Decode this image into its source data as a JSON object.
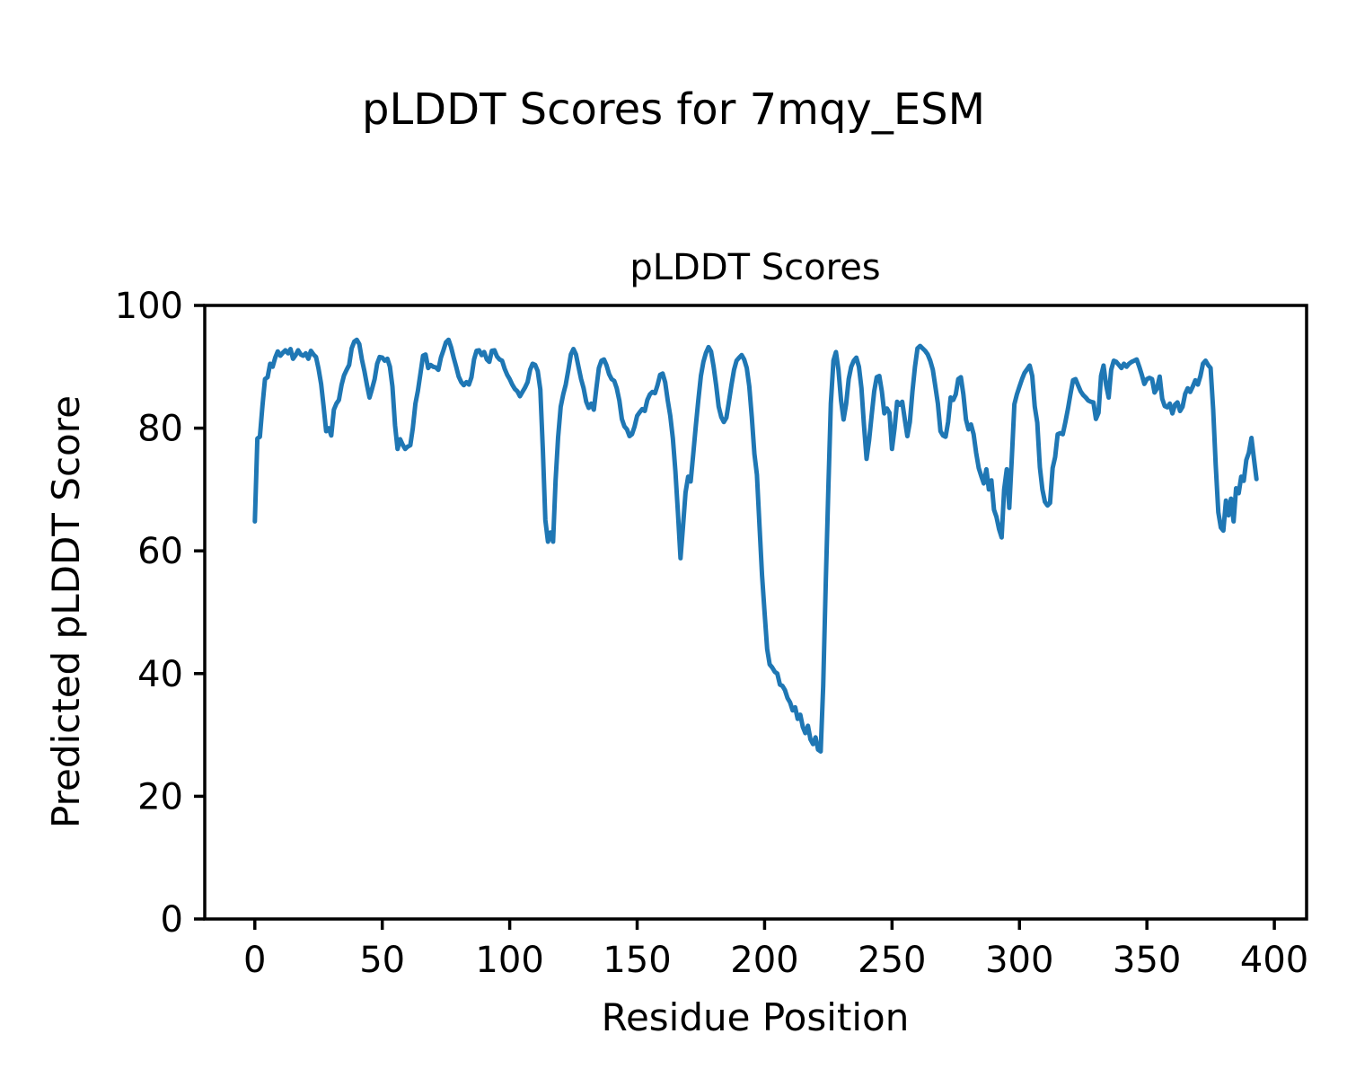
{
  "figure": {
    "suptitle": "pLDDT Scores for 7mqy_ESM",
    "axes_title": "pLDDT Scores",
    "xlabel": "Residue Position",
    "ylabel": "Predicted pLDDT Score",
    "background": "#ffffff",
    "line_color": "#1f77b4",
    "spine_color": "#000000"
  },
  "chart_data": {
    "type": "line",
    "title": "pLDDT Scores",
    "suptitle": "pLDDT Scores for 7mqy_ESM",
    "xlabel": "Residue Position",
    "ylabel": "Predicted pLDDT Score",
    "series_name": "pLDDT",
    "grid": false,
    "legend": null,
    "xlim": [
      -19.65,
      412.65
    ],
    "ylim": [
      0,
      100
    ],
    "xticks": [
      0,
      50,
      100,
      150,
      200,
      250,
      300,
      350,
      400
    ],
    "yticks": [
      0,
      20,
      40,
      60,
      80,
      100
    ],
    "x_range": [
      0,
      393
    ],
    "x_step": 1,
    "y": [
      64.8,
      78.3,
      78.6,
      83.7,
      88.0,
      88.3,
      90.5,
      90.0,
      91.5,
      92.5,
      91.8,
      92.3,
      92.7,
      92.2,
      92.9,
      91.3,
      91.9,
      92.7,
      92.0,
      91.8,
      92.2,
      91.3,
      92.6,
      92.0,
      91.6,
      89.7,
      87.2,
      83.5,
      79.5,
      80.0,
      78.8,
      83.0,
      84.0,
      84.6,
      87.0,
      88.6,
      89.5,
      90.3,
      93.0,
      94.1,
      94.4,
      93.7,
      91.2,
      89.3,
      87.0,
      85.0,
      86.4,
      88.0,
      90.5,
      91.6,
      91.5,
      91.0,
      91.3,
      90.0,
      86.8,
      80.5,
      76.6,
      78.2,
      77.3,
      76.6,
      77.0,
      77.2,
      80.0,
      84.0,
      86.1,
      89.0,
      91.8,
      92.0,
      89.8,
      90.3,
      90.0,
      89.9,
      89.5,
      91.5,
      92.7,
      94.0,
      94.4,
      93.2,
      91.5,
      90.0,
      88.4,
      87.5,
      87.0,
      87.5,
      87.1,
      88.3,
      91.2,
      92.6,
      92.7,
      91.9,
      92.4,
      91.2,
      90.8,
      92.6,
      92.7,
      91.7,
      91.2,
      91.0,
      89.7,
      88.7,
      88.0,
      87.1,
      86.4,
      86.0,
      85.2,
      85.9,
      86.6,
      87.5,
      89.5,
      90.5,
      90.3,
      89.3,
      86.3,
      76.5,
      65.0,
      61.5,
      63.0,
      61.5,
      71.5,
      78.5,
      83.5,
      85.5,
      87.1,
      89.5,
      92.0,
      92.9,
      92.0,
      90.0,
      88.0,
      86.5,
      84.3,
      83.3,
      84.0,
      83.0,
      86.5,
      89.8,
      91.0,
      91.2,
      90.2,
      88.8,
      88.0,
      87.7,
      86.5,
      84.5,
      81.5,
      80.3,
      79.8,
      78.7,
      79.0,
      80.3,
      82.0,
      82.6,
      83.1,
      82.8,
      84.6,
      85.5,
      85.9,
      85.7,
      87.0,
      88.7,
      88.9,
      87.5,
      84.5,
      82.0,
      78.3,
      73.0,
      66.3,
      58.8,
      64.0,
      69.5,
      72.1,
      71.3,
      75.8,
      80.3,
      84.5,
      88.5,
      90.8,
      92.3,
      93.2,
      92.5,
      90.0,
      87.0,
      83.5,
      81.8,
      81.0,
      81.7,
      84.3,
      87.0,
      89.5,
      91.0,
      91.5,
      91.9,
      91.2,
      89.8,
      86.8,
      81.8,
      75.8,
      72.4,
      64.0,
      56.0,
      50.0,
      44.0,
      41.5,
      41.0,
      40.3,
      40.0,
      38.2,
      38.0,
      37.3,
      36.0,
      35.3,
      34.0,
      34.5,
      32.6,
      33.3,
      31.3,
      30.3,
      31.5,
      29.3,
      28.5,
      29.6,
      27.6,
      27.3,
      38.0,
      55.0,
      70.0,
      84.0,
      91.0,
      92.4,
      89.5,
      84.5,
      81.4,
      84.0,
      88.0,
      90.0,
      91.0,
      91.5,
      90.0,
      86.5,
      80.5,
      75.0,
      78.0,
      82.0,
      86.0,
      88.3,
      88.5,
      86.0,
      82.4,
      83.2,
      82.5,
      76.6,
      80.0,
      84.3,
      83.8,
      84.3,
      81.5,
      78.7,
      81.0,
      86.0,
      90.0,
      93.0,
      93.4,
      93.0,
      92.6,
      92.0,
      91.0,
      89.5,
      86.8,
      84.0,
      79.5,
      78.8,
      78.6,
      81.0,
      85.0,
      84.6,
      85.5,
      88.0,
      88.3,
      85.5,
      81.4,
      79.8,
      80.6,
      79.0,
      76.0,
      73.5,
      72.2,
      71.0,
      73.3,
      70.0,
      71.5,
      66.7,
      65.5,
      63.5,
      62.2,
      70.0,
      73.3,
      67.0,
      75.0,
      83.9,
      85.5,
      86.8,
      88.0,
      89.0,
      89.6,
      90.2,
      88.5,
      83.5,
      80.9,
      73.6,
      70.0,
      68.0,
      67.4,
      67.8,
      73.5,
      75.3,
      79.0,
      79.2,
      79.0,
      81.0,
      83.1,
      85.5,
      87.8,
      88.0,
      87.0,
      86.0,
      85.4,
      85.0,
      84.5,
      84.3,
      84.2,
      81.5,
      82.5,
      88.5,
      90.2,
      87.0,
      85.0,
      89.5,
      91.0,
      90.8,
      90.3,
      89.8,
      90.5,
      90.0,
      90.5,
      90.8,
      91.0,
      91.2,
      90.0,
      88.7,
      87.2,
      88.0,
      88.2,
      88.0,
      85.8,
      86.5,
      88.4,
      84.8,
      83.6,
      83.4,
      84.0,
      82.4,
      83.8,
      84.2,
      82.8,
      83.5,
      85.6,
      86.5,
      85.9,
      86.8,
      87.8,
      87.1,
      88.5,
      90.5,
      91.0,
      90.3,
      89.8,
      83.0,
      74.0,
      66.3,
      63.8,
      63.3,
      68.2,
      65.8,
      68.5,
      64.8,
      70.2,
      69.4,
      72.1,
      71.4,
      74.8,
      76.0,
      78.4,
      75.0,
      71.7
    ]
  }
}
